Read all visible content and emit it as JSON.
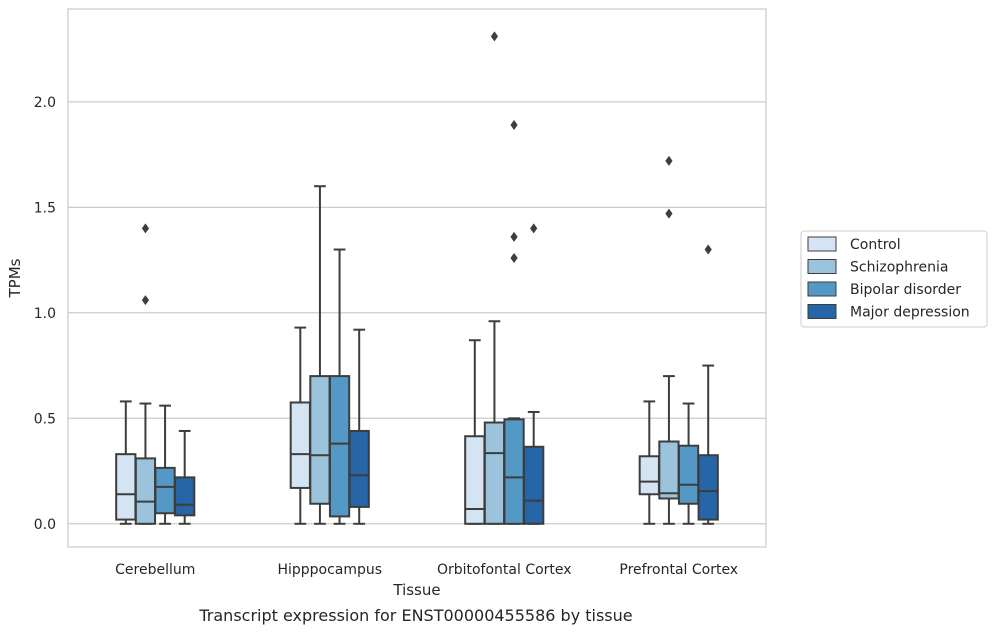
{
  "caption": "Transcript expression for ENST00000455586 by tissue",
  "chart_data": {
    "type": "box",
    "xlabel": "Tissue",
    "ylabel": "TPMs",
    "ylim": [
      -0.11,
      2.44
    ],
    "yticks": [
      0.0,
      0.5,
      1.0,
      1.5,
      2.0
    ],
    "ytick_labels": [
      "0.0",
      "0.5",
      "1.0",
      "1.5",
      "2.0"
    ],
    "grid": "horizontal",
    "legend_position": "right",
    "categories": [
      "Cerebellum",
      "Hipppocampus",
      "Orbitofontal Cortex",
      "Prefrontal Cortex"
    ],
    "series": [
      {
        "name": "Control",
        "color": "#d4e4f3",
        "boxes": [
          {
            "min": 0.0,
            "q1": 0.02,
            "median": 0.14,
            "q3": 0.33,
            "max": 0.58,
            "outliers": []
          },
          {
            "min": 0.0,
            "q1": 0.17,
            "median": 0.33,
            "q3": 0.575,
            "max": 0.93,
            "outliers": []
          },
          {
            "min": 0.0,
            "q1": 0.0,
            "median": 0.07,
            "q3": 0.415,
            "max": 0.87,
            "outliers": []
          },
          {
            "min": 0.0,
            "q1": 0.14,
            "median": 0.2,
            "q3": 0.32,
            "max": 0.58,
            "outliers": []
          }
        ]
      },
      {
        "name": "Schizophrenia",
        "color": "#9bc4dc",
        "boxes": [
          {
            "min": 0.0,
            "q1": 0.0,
            "median": 0.105,
            "q3": 0.31,
            "max": 0.57,
            "outliers": [
              1.06,
              1.4
            ]
          },
          {
            "min": 0.0,
            "q1": 0.095,
            "median": 0.325,
            "q3": 0.7,
            "max": 1.6,
            "outliers": []
          },
          {
            "min": 0.0,
            "q1": 0.0,
            "median": 0.335,
            "q3": 0.48,
            "max": 0.96,
            "outliers": [
              2.31
            ]
          },
          {
            "min": 0.0,
            "q1": 0.12,
            "median": 0.145,
            "q3": 0.39,
            "max": 0.7,
            "outliers": [
              1.47,
              1.72
            ]
          }
        ]
      },
      {
        "name": "Bipolar disorder",
        "color": "#5499c6",
        "boxes": [
          {
            "min": 0.0,
            "q1": 0.05,
            "median": 0.175,
            "q3": 0.265,
            "max": 0.56,
            "outliers": []
          },
          {
            "min": 0.0,
            "q1": 0.035,
            "median": 0.38,
            "q3": 0.7,
            "max": 1.3,
            "outliers": []
          },
          {
            "min": 0.0,
            "q1": 0.0,
            "median": 0.22,
            "q3": 0.495,
            "max": 0.5,
            "outliers": [
              1.26,
              1.36,
              1.89
            ]
          },
          {
            "min": 0.0,
            "q1": 0.095,
            "median": 0.185,
            "q3": 0.37,
            "max": 0.57,
            "outliers": []
          }
        ]
      },
      {
        "name": "Major depression",
        "color": "#2565a8",
        "boxes": [
          {
            "min": 0.0,
            "q1": 0.04,
            "median": 0.09,
            "q3": 0.22,
            "max": 0.44,
            "outliers": []
          },
          {
            "min": 0.0,
            "q1": 0.08,
            "median": 0.23,
            "q3": 0.44,
            "max": 0.92,
            "outliers": []
          },
          {
            "min": 0.0,
            "q1": 0.0,
            "median": 0.11,
            "q3": 0.365,
            "max": 0.53,
            "outliers": [
              1.4
            ]
          },
          {
            "min": 0.0,
            "q1": 0.02,
            "median": 0.155,
            "q3": 0.325,
            "max": 0.75,
            "outliers": [
              1.3
            ]
          }
        ]
      }
    ]
  }
}
